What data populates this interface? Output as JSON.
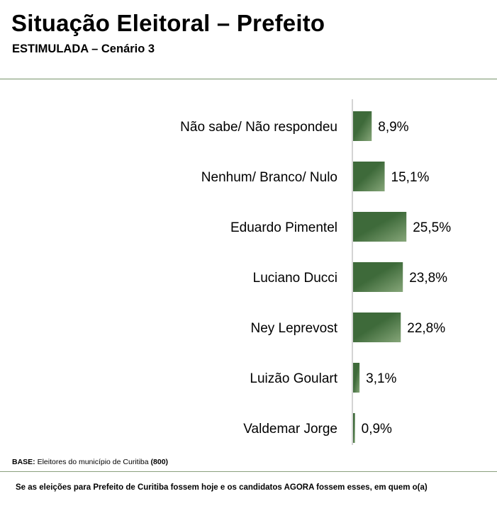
{
  "header": {
    "title": "Situação Eleitoral – Prefeito",
    "subtitle": "ESTIMULADA – Cenário 3"
  },
  "chart_data": {
    "type": "bar",
    "orientation": "horizontal",
    "title": "",
    "xlabel": "",
    "ylabel": "",
    "xlim": [
      0,
      30
    ],
    "grid": false,
    "categories": [
      "Não sabe/ Não respondeu",
      "Nenhum/ Branco/ Nulo",
      "Eduardo Pimentel",
      "Luciano Ducci",
      "Ney Leprevost",
      "Luizão Goulart",
      "Valdemar Jorge"
    ],
    "values": [
      8.9,
      15.1,
      25.5,
      23.8,
      22.8,
      3.1,
      0.9
    ],
    "value_labels": [
      "8,9%",
      "15,1%",
      "25,5%",
      "23,8%",
      "22,8%",
      "3,1%",
      "0,9%"
    ],
    "bar_color_dark": "#3e6a3a",
    "bar_color_light": "#86a679"
  },
  "footer": {
    "base_label": "BASE:",
    "base_text": " Eleitores do município de Curitiba ",
    "base_count": "(800)",
    "question": "Se as eleições para Prefeito de Curitiba fossem hoje e os candidatos AGORA fossem esses, em quem o(a)"
  },
  "colors": {
    "rule": "#77936a",
    "axis": "#a9a9a9"
  }
}
